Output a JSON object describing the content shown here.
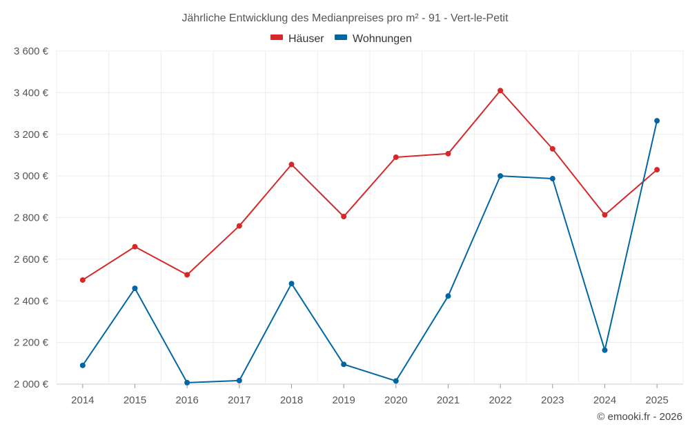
{
  "chart_data": {
    "type": "line",
    "title": "Jährliche Entwicklung des Medianpreises pro m² - 91 - Vert-le-Petit",
    "categories": [
      "2014",
      "2015",
      "2016",
      "2017",
      "2018",
      "2019",
      "2020",
      "2021",
      "2022",
      "2023",
      "2024",
      "2025"
    ],
    "series": [
      {
        "name": "Häuser",
        "color": "#d62828",
        "values": [
          2500,
          2660,
          2525,
          2760,
          3055,
          2805,
          3090,
          3107,
          3410,
          3130,
          2813,
          3030
        ]
      },
      {
        "name": "Wohnungen",
        "color": "#0066a1",
        "values": [
          2090,
          2460,
          2007,
          2017,
          2483,
          2095,
          2015,
          2423,
          3000,
          2987,
          2163,
          3265
        ]
      }
    ],
    "ylim": [
      2000,
      3600
    ],
    "yticks": [
      2000,
      2200,
      2400,
      2600,
      2800,
      3000,
      3200,
      3400,
      3600
    ],
    "ytick_labels": [
      "2 000 €",
      "2 200 €",
      "2 400 €",
      "2 600 €",
      "2 800 €",
      "3 000 €",
      "3 200 €",
      "3 400 €",
      "3 600 €"
    ],
    "xlabel": "",
    "ylabel": "",
    "legend_position": "top-center",
    "grid": true
  },
  "credit": "© emooki.fr - 2026"
}
